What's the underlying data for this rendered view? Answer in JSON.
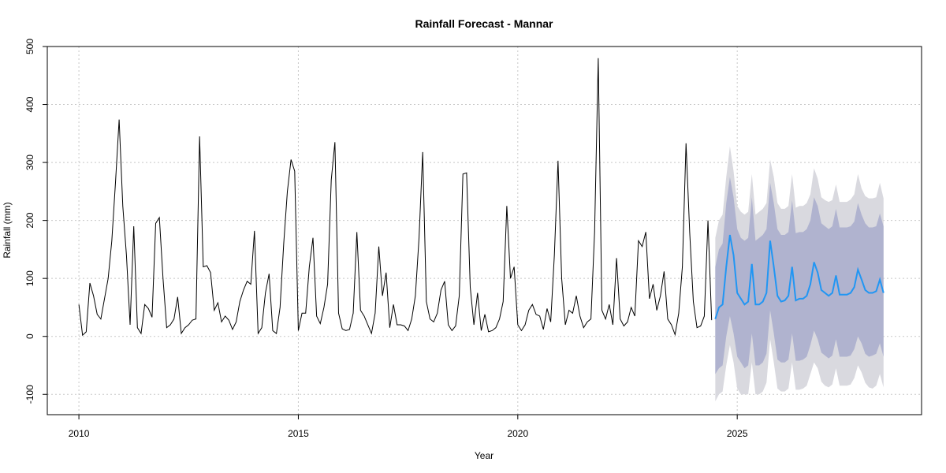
{
  "chart_data": {
    "type": "line",
    "title": "Rainfall Forecast - Mannar",
    "xlabel": "Year",
    "ylabel": "Rainfall (mm)",
    "xlim": [
      2009.28,
      2029.2
    ],
    "ylim": [
      -135,
      500
    ],
    "x_ticks": [
      2010,
      2015,
      2020,
      2025
    ],
    "x_tick_labels": [
      "2010",
      "2015",
      "2020",
      "2025"
    ],
    "y_ticks": [
      -100,
      0,
      100,
      200,
      300,
      400,
      500
    ],
    "y_tick_labels": [
      "-100",
      "0",
      "100",
      "200",
      "300",
      "400",
      "500"
    ],
    "grid": true,
    "colors": {
      "observed": "#000000",
      "forecast": "#2196F3",
      "band_80": "#B0B3CF",
      "band_95": "#D9D9DF",
      "grid": "#C8C8C8"
    },
    "observed": {
      "start_year": 2010,
      "frequency": 12,
      "values": [
        55,
        2,
        8,
        92,
        70,
        38,
        30,
        65,
        100,
        165,
        265,
        374,
        225,
        140,
        20,
        190,
        15,
        5,
        55,
        48,
        33,
        195,
        205,
        100,
        15,
        20,
        30,
        68,
        5,
        15,
        20,
        28,
        30,
        345,
        120,
        122,
        110,
        45,
        58,
        25,
        35,
        28,
        12,
        25,
        60,
        80,
        95,
        90,
        182,
        5,
        15,
        75,
        108,
        10,
        5,
        50,
        160,
        250,
        305,
        285,
        10,
        40,
        40,
        120,
        170,
        35,
        22,
        50,
        90,
        270,
        335,
        40,
        13,
        10,
        12,
        40,
        180,
        45,
        35,
        20,
        5,
        40,
        155,
        70,
        110,
        15,
        55,
        20,
        20,
        18,
        10,
        30,
        70,
        170,
        318,
        60,
        30,
        25,
        40,
        80,
        95,
        20,
        10,
        18,
        70,
        280,
        282,
        85,
        20,
        75,
        10,
        38,
        8,
        10,
        15,
        30,
        60,
        225,
        100,
        120,
        20,
        10,
        20,
        45,
        55,
        38,
        35,
        12,
        48,
        25,
        140,
        303,
        100,
        20,
        45,
        40,
        70,
        35,
        15,
        25,
        30,
        180,
        480,
        45,
        30,
        55,
        20,
        135,
        30,
        18,
        25,
        50,
        35,
        165,
        155,
        180,
        65,
        90,
        45,
        70,
        112,
        30,
        20,
        3,
        40,
        120,
        333,
        180,
        60,
        15,
        18,
        35,
        200,
        28
      ]
    },
    "forecast": {
      "start_year": 2024.5,
      "frequency": 12,
      "mean": [
        30,
        50,
        55,
        120,
        175,
        140,
        75,
        65,
        55,
        60,
        125,
        55,
        55,
        60,
        75,
        165,
        120,
        70,
        60,
        62,
        70,
        120,
        62,
        65,
        65,
        70,
        90,
        128,
        110,
        80,
        75,
        70,
        75,
        105,
        72,
        72,
        72,
        75,
        85,
        115,
        98,
        80,
        75,
        75,
        78,
        98,
        75
      ],
      "lo80": [
        -65,
        -55,
        -50,
        0,
        35,
        5,
        -35,
        -45,
        -55,
        -50,
        5,
        -50,
        -50,
        -45,
        -30,
        45,
        5,
        -40,
        -45,
        -45,
        -40,
        5,
        -42,
        -42,
        -40,
        -35,
        -15,
        10,
        -5,
        -28,
        -33,
        -38,
        -33,
        -5,
        -35,
        -35,
        -35,
        -33,
        -22,
        0,
        -12,
        -30,
        -35,
        -33,
        -30,
        -12,
        -35
      ],
      "hi80": [
        120,
        150,
        160,
        230,
        275,
        240,
        185,
        170,
        165,
        170,
        240,
        165,
        170,
        175,
        185,
        265,
        230,
        185,
        175,
        175,
        180,
        235,
        178,
        180,
        180,
        185,
        200,
        240,
        225,
        195,
        190,
        185,
        190,
        220,
        188,
        188,
        188,
        190,
        198,
        230,
        210,
        195,
        188,
        188,
        190,
        212,
        190
      ],
      "lo95": [
        -112,
        -100,
        -95,
        -50,
        -15,
        -45,
        -90,
        -100,
        -100,
        -100,
        -45,
        -100,
        -100,
        -95,
        -80,
        -5,
        -45,
        -90,
        -95,
        -95,
        -90,
        -45,
        -92,
        -92,
        -90,
        -85,
        -65,
        -45,
        -55,
        -78,
        -85,
        -88,
        -83,
        -55,
        -85,
        -85,
        -85,
        -83,
        -72,
        -50,
        -62,
        -80,
        -88,
        -90,
        -85,
        -65,
        -88
      ],
      "hi95": [
        170,
        200,
        210,
        275,
        328,
        285,
        225,
        215,
        210,
        215,
        280,
        210,
        215,
        220,
        230,
        305,
        275,
        230,
        220,
        220,
        225,
        280,
        222,
        225,
        225,
        230,
        245,
        290,
        272,
        240,
        235,
        232,
        235,
        262,
        232,
        232,
        232,
        236,
        245,
        280,
        255,
        242,
        238,
        238,
        240,
        265,
        238
      ]
    }
  }
}
